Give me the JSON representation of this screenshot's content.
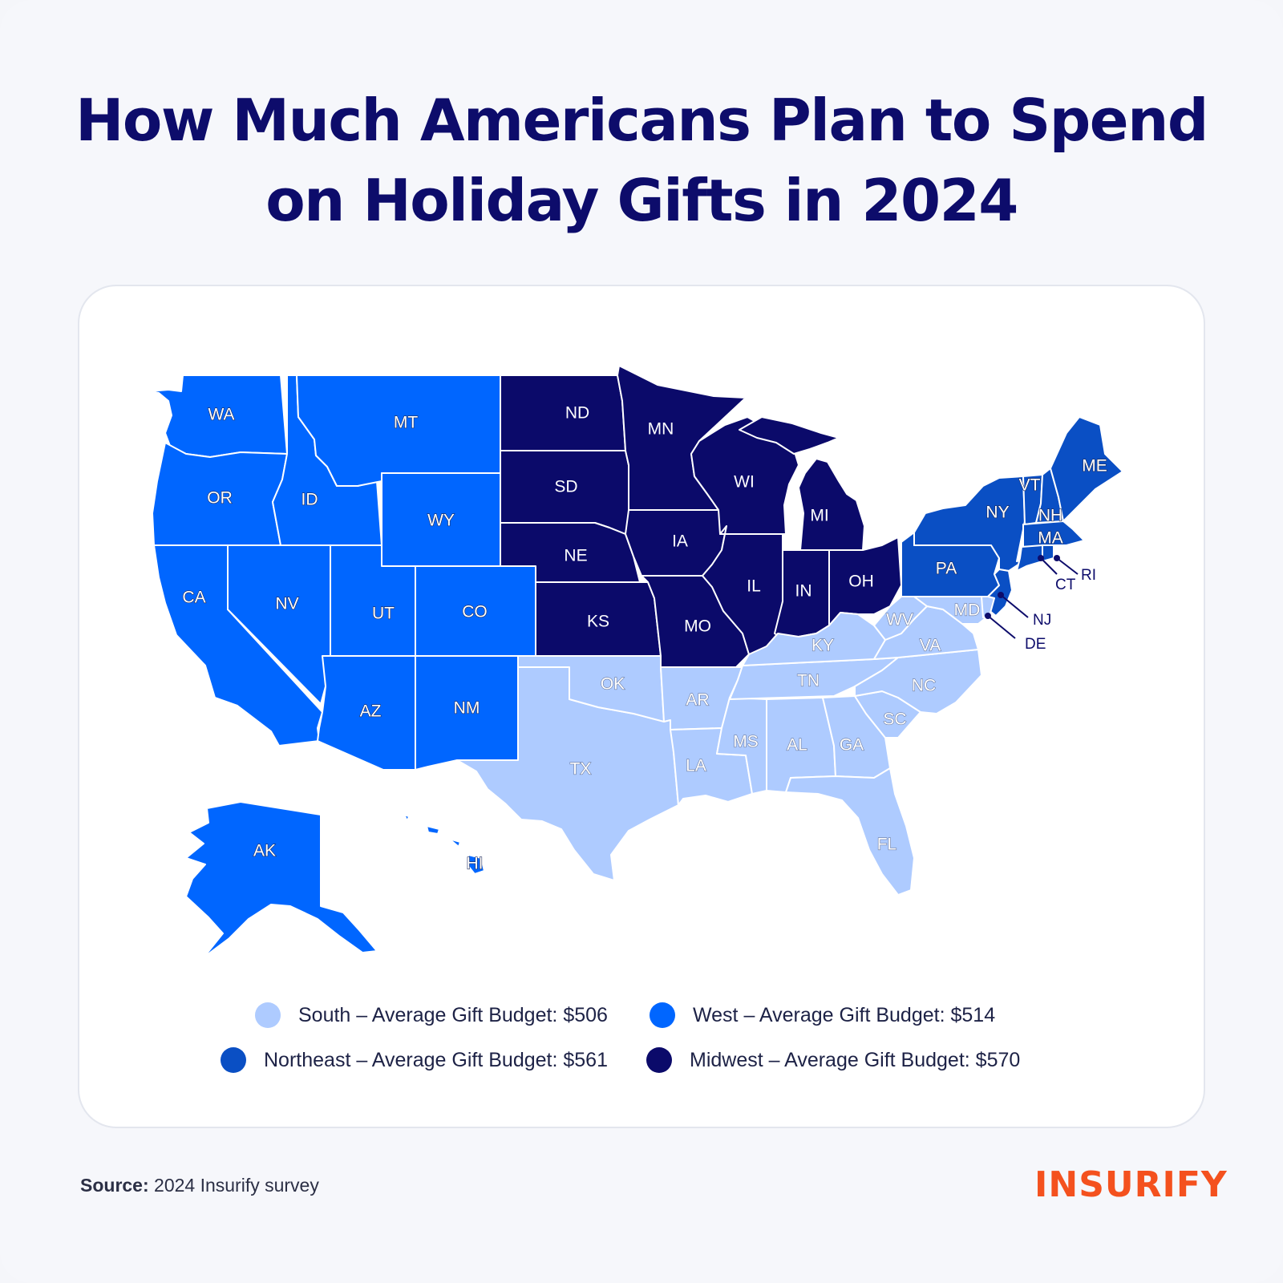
{
  "title_line1": "How Much Americans Plan to Spend",
  "title_line2": "on Holiday Gifts in 2024",
  "colors": {
    "South": "#aecbff",
    "West": "#0066ff",
    "Northeast": "#0a4fc4",
    "Midwest": "#0b0a6a"
  },
  "legend": [
    {
      "region": "South",
      "text": "South – Average Gift Budget: $506",
      "budget": 506
    },
    {
      "region": "West",
      "text": "West – Average Gift Budget: $514",
      "budget": 514
    },
    {
      "region": "Northeast",
      "text": "Northeast – Average Gift Budget: $561",
      "budget": 561
    },
    {
      "region": "Midwest",
      "text": "Midwest – Average Gift Budget: $570",
      "budget": 570
    }
  ],
  "states": {
    "WA": "West",
    "OR": "West",
    "CA": "West",
    "NV": "West",
    "ID": "West",
    "MT": "West",
    "WY": "West",
    "UT": "West",
    "CO": "West",
    "AZ": "West",
    "NM": "West",
    "AK": "West",
    "HI": "West",
    "ND": "Midwest",
    "SD": "Midwest",
    "NE": "Midwest",
    "KS": "Midwest",
    "MN": "Midwest",
    "IA": "Midwest",
    "MO": "Midwest",
    "WI": "Midwest",
    "IL": "Midwest",
    "MI": "Midwest",
    "IN": "Midwest",
    "OH": "Midwest",
    "PA": "Northeast",
    "NY": "Northeast",
    "VT": "Northeast",
    "NH": "Northeast",
    "ME": "Northeast",
    "MA": "Northeast",
    "RI": "Northeast",
    "CT": "Northeast",
    "NJ": "Northeast",
    "TX": "South",
    "OK": "South",
    "AR": "South",
    "LA": "South",
    "MS": "South",
    "AL": "South",
    "TN": "South",
    "KY": "South",
    "GA": "South",
    "FL": "South",
    "SC": "South",
    "NC": "South",
    "VA": "South",
    "WV": "South",
    "MD": "South",
    "DE": "South"
  },
  "callouts": [
    "CT",
    "RI",
    "NJ",
    "DE"
  ],
  "source_label": "Source:",
  "source_text": "2024 Insurify survey",
  "logo": "INSURIFY"
}
